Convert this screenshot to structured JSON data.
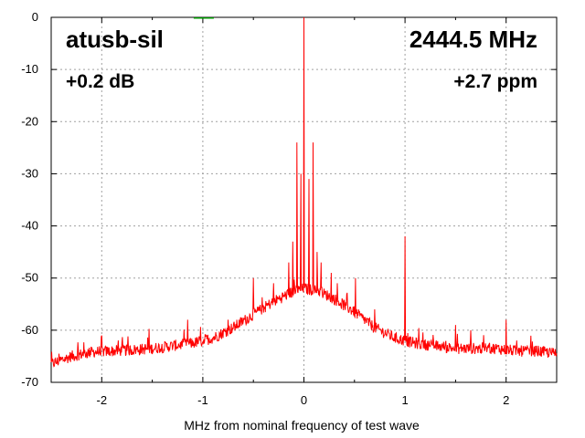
{
  "chart_data": {
    "type": "line",
    "title": "atusb-sil",
    "annotations": {
      "top_left": "atusb-sil",
      "top_right": "2444.5 MHz",
      "mid_left": "+0.2 dB",
      "mid_right": "+2.7 ppm"
    },
    "xlabel": "MHz from nominal frequency of test wave",
    "ylabel": "",
    "xlim": [
      -2.5,
      2.5
    ],
    "ylim": [
      -70,
      0
    ],
    "x_ticks": [
      -2,
      -1,
      0,
      1,
      2
    ],
    "y_ticks": [
      0,
      -10,
      -20,
      -30,
      -40,
      -50,
      -60,
      -70
    ],
    "grid": true,
    "series_color": "#ff0000",
    "series": [
      {
        "values_description_free": true,
        "baseline": [
          [
            -2.5,
            -66.5
          ],
          [
            -2.3,
            -65.0
          ],
          [
            -2.1,
            -64.2
          ],
          [
            -1.9,
            -64.0
          ],
          [
            -1.7,
            -63.8
          ],
          [
            -1.5,
            -63.5
          ],
          [
            -1.3,
            -63.0
          ],
          [
            -1.1,
            -62.5
          ],
          [
            -0.9,
            -61.5
          ],
          [
            -0.7,
            -59.5
          ],
          [
            -0.5,
            -57.0
          ],
          [
            -0.3,
            -54.5
          ],
          [
            -0.15,
            -53.0
          ],
          [
            0.0,
            -52.0
          ],
          [
            0.15,
            -52.5
          ],
          [
            0.3,
            -54.0
          ],
          [
            0.5,
            -56.5
          ],
          [
            0.7,
            -59.5
          ],
          [
            0.9,
            -61.5
          ],
          [
            1.1,
            -62.5
          ],
          [
            1.3,
            -63.0
          ],
          [
            1.5,
            -63.5
          ],
          [
            1.7,
            -63.5
          ],
          [
            1.9,
            -63.5
          ],
          [
            2.1,
            -64.0
          ],
          [
            2.3,
            -64.0
          ],
          [
            2.5,
            -64.5
          ]
        ],
        "spurs": [
          [
            0.0,
            0
          ],
          [
            -0.07,
            -24
          ],
          [
            0.09,
            -24
          ],
          [
            -0.03,
            -30
          ],
          [
            0.05,
            -31
          ],
          [
            -0.11,
            -43
          ],
          [
            0.13,
            -45
          ],
          [
            -0.15,
            -47
          ],
          [
            0.17,
            -47
          ],
          [
            0.27,
            -49
          ],
          [
            0.51,
            -50
          ],
          [
            -0.5,
            -50
          ],
          [
            1.0,
            -42
          ],
          [
            -1.15,
            -58
          ],
          [
            -2.0,
            -61
          ],
          [
            1.5,
            -59
          ],
          [
            1.65,
            -60
          ],
          [
            2.0,
            -58
          ],
          [
            -0.3,
            -51
          ],
          [
            0.33,
            -51
          ],
          [
            0.7,
            -56
          ],
          [
            -0.75,
            -58
          ]
        ]
      }
    ]
  }
}
